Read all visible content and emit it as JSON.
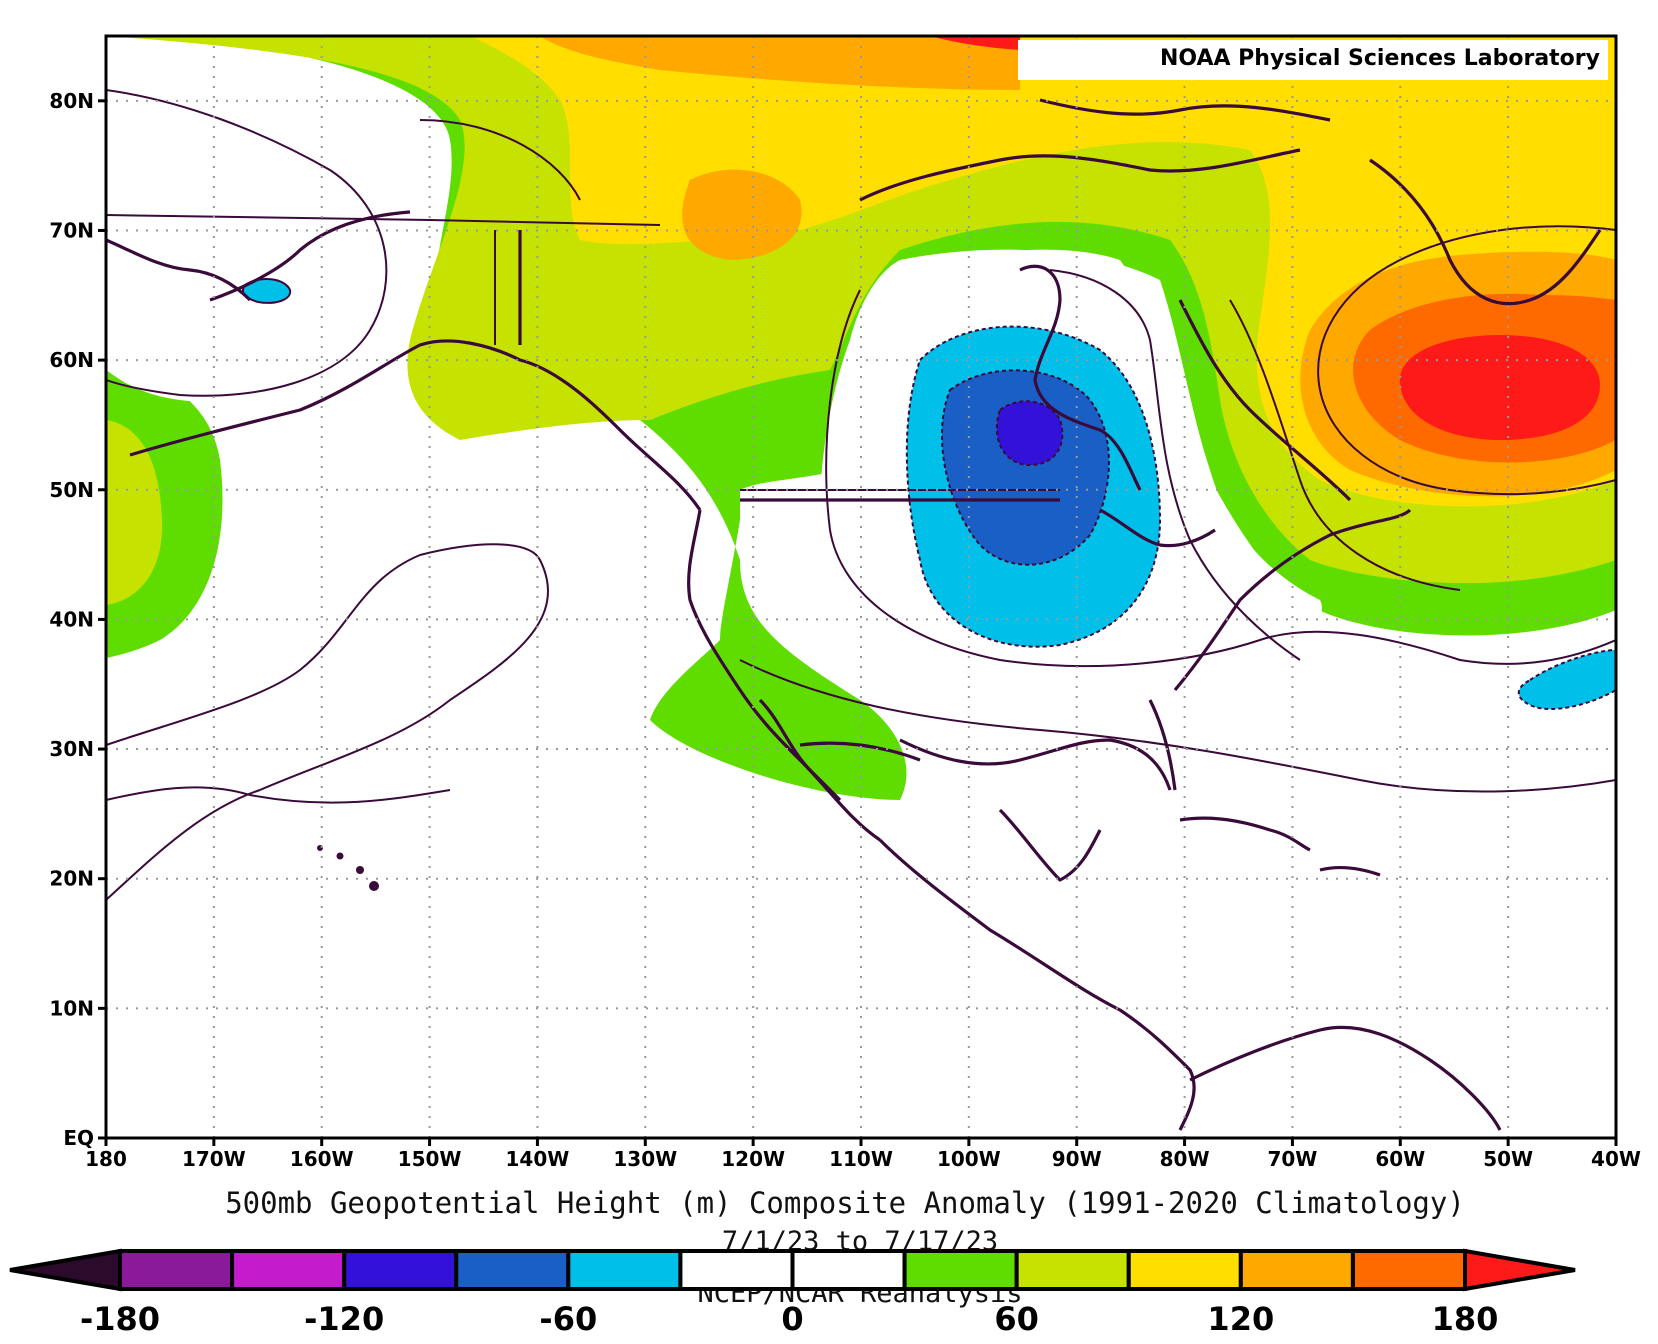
{
  "credit": "NOAA Physical Sciences Laboratory",
  "title": "500mb Geopotential Height (m) Composite Anomaly (1991-2020 Climatology)",
  "date_range": "7/1/23  to 7/17/23",
  "dataset": "NCEP/NCAR Reanalysis",
  "lat_labels": [
    "80N",
    "70N",
    "60N",
    "50N",
    "40N",
    "30N",
    "20N",
    "10N",
    "EQ"
  ],
  "lon_labels": [
    "180",
    "170W",
    "160W",
    "150W",
    "140W",
    "130W",
    "120W",
    "110W",
    "100W",
    "90W",
    "80W",
    "70W",
    "60W",
    "50W",
    "40W"
  ],
  "colorbar": {
    "labels": [
      "-180",
      "-120",
      "-60",
      "0",
      "60",
      "120",
      "180"
    ],
    "colors": [
      "#2b0a2b",
      "#8a1a99",
      "#c41ccc",
      "#3311d9",
      "#1a5fc6",
      "#00c0ea",
      "#ffffff",
      "#ffffff",
      "#60dd00",
      "#c6e200",
      "#ffde00",
      "#ffa800",
      "#ff6a00",
      "#ff1a1a"
    ]
  },
  "map": {
    "region": "North Pacific, North America, North Atlantic (EQ-85N, 180-40W)",
    "negative_anomaly_center": "Hudson Bay / central Canada",
    "positive_anomaly_center": "Labrador Sea / south of Greenland",
    "fill_colors": {
      "very_high": "#ff1a1a",
      "high": "#ff6a00",
      "mid_high": "#ffa800",
      "mid": "#ffde00",
      "low_pos": "#c6e200",
      "min_pos": "#60dd00",
      "neutral": "#ffffff",
      "min_neg": "#00c0ea",
      "mid_neg": "#1a5fc6",
      "strong_neg": "#3311d9",
      "coast": "#3a0a3a"
    }
  }
}
